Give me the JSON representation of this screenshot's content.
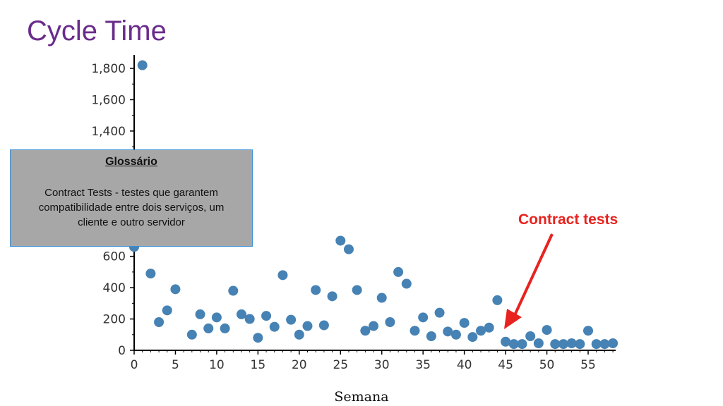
{
  "title": "Cycle Time",
  "glossary": {
    "title": "Glossário",
    "text": "Contract Tests - testes que garantem compatibilidade entre dois serviços, um cliente e outro servidor"
  },
  "annotation": {
    "label": "Contract tests",
    "color": "#e8231f"
  },
  "chart_data": {
    "type": "scatter",
    "xlabel": "Semana",
    "ylabel": "",
    "xlim": [
      0,
      58
    ],
    "ylim": [
      0,
      1900
    ],
    "xticks": [
      0,
      5,
      10,
      15,
      20,
      25,
      30,
      35,
      40,
      45,
      50,
      55
    ],
    "yticks": [
      0,
      200,
      400,
      600,
      1400,
      1600,
      1800
    ],
    "ytick_labels": [
      "0",
      "200",
      "400",
      "600",
      "1,400",
      "1,600",
      "1,800"
    ],
    "point_color": "#4682b4",
    "grid": false,
    "series": [
      {
        "x": [
          0,
          1,
          2,
          3,
          4,
          5,
          7,
          8,
          9,
          10,
          11,
          12,
          13,
          14,
          15,
          16,
          17,
          18,
          19,
          20,
          21,
          22,
          23,
          24,
          25,
          26,
          27,
          28,
          29,
          30,
          31,
          32,
          33,
          34,
          35,
          36,
          37,
          38,
          39,
          40,
          41,
          42,
          43,
          44,
          45,
          46,
          47,
          48,
          49,
          50,
          51,
          52,
          53,
          54,
          55,
          56,
          57,
          58
        ],
        "y": [
          660,
          1820,
          490,
          180,
          255,
          390,
          100,
          230,
          140,
          210,
          140,
          380,
          230,
          200,
          80,
          220,
          150,
          480,
          195,
          100,
          155,
          385,
          160,
          345,
          700,
          645,
          385,
          125,
          155,
          335,
          180,
          500,
          425,
          125,
          210,
          90,
          240,
          120,
          100,
          175,
          85,
          125,
          145,
          320,
          55,
          40,
          40,
          90,
          45,
          130,
          40,
          40,
          45,
          40,
          125,
          40,
          40,
          45
        ]
      }
    ]
  }
}
